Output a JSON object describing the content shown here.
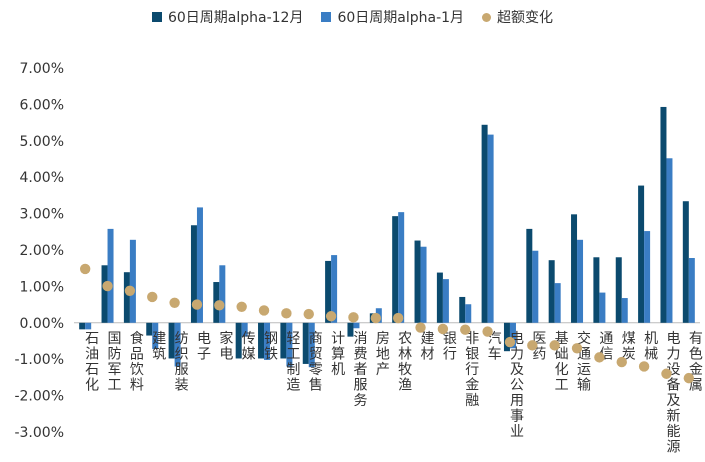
{
  "chart_data": {
    "type": "bar",
    "ylim": [
      -3.0,
      7.0
    ],
    "ytick_step": 1.0,
    "yticks": [
      "7.00%",
      "6.00%",
      "5.00%",
      "4.00%",
      "3.00%",
      "2.00%",
      "1.00%",
      "0.00%",
      "-1.00%",
      "-2.00%",
      "-3.00%"
    ],
    "legend_position": "top-center",
    "categories": [
      "石油石化",
      "国防军工",
      "食品饮料",
      "建筑",
      "纺织服装",
      "电子",
      "家电",
      "传媒",
      "钢铁",
      "轻工制造",
      "商贸零售",
      "计算机",
      "消费者服务",
      "房地产",
      "农林牧渔",
      "建材",
      "银行",
      "非银行金融",
      "汽车",
      "电力及公用事业",
      "医药",
      "基础化工",
      "交通运输",
      "通信",
      "煤炭",
      "机械",
      "电力设备及新能源",
      "有色金属"
    ],
    "series": [
      {
        "name": "60日周期alpha-12月",
        "kind": "bar",
        "color": "#0b4a6e",
        "values": [
          -0.18,
          1.58,
          1.39,
          -0.35,
          -0.98,
          2.68,
          1.12,
          -0.98,
          -0.98,
          -0.98,
          -1.13,
          1.7,
          -0.38,
          0.26,
          2.93,
          2.26,
          1.38,
          0.71,
          5.44,
          -0.78,
          2.58,
          1.72,
          2.98,
          1.8,
          1.8,
          3.77,
          5.93,
          3.34
        ]
      },
      {
        "name": "60日周期alpha-1月",
        "kind": "bar",
        "color": "#3a7dc4",
        "values": [
          -0.18,
          2.58,
          2.28,
          -0.72,
          -1.2,
          3.17,
          1.58,
          -0.38,
          -1.02,
          -1.2,
          -1.22,
          1.86,
          -0.15,
          0.4,
          3.04,
          2.09,
          1.2,
          0.51,
          5.17,
          -0.7,
          1.98,
          1.09,
          2.28,
          0.83,
          0.68,
          2.52,
          4.52,
          1.78
        ]
      },
      {
        "name": "超额变化",
        "kind": "dot",
        "color": "#c8a870",
        "values": [
          1.48,
          1.01,
          0.88,
          0.71,
          0.55,
          0.5,
          0.48,
          0.44,
          0.34,
          0.26,
          0.24,
          0.18,
          0.15,
          0.13,
          0.13,
          -0.13,
          -0.17,
          -0.19,
          -0.24,
          -0.53,
          -0.62,
          -0.62,
          -0.7,
          -0.95,
          -1.08,
          -1.2,
          -1.4,
          -1.52
        ]
      }
    ]
  }
}
